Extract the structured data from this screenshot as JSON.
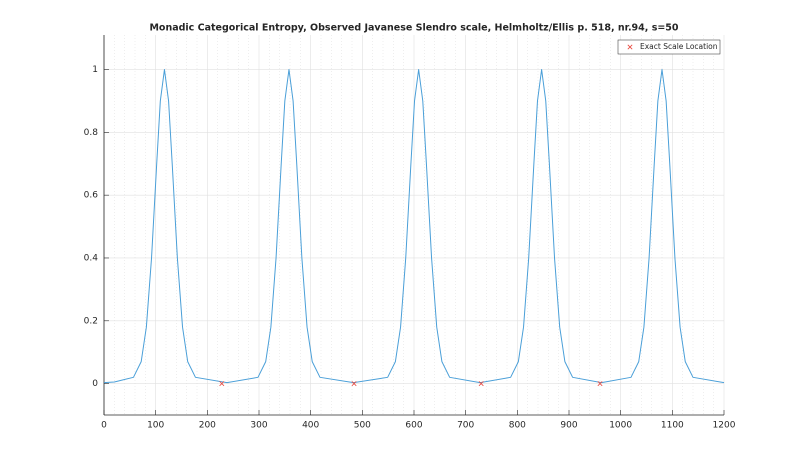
{
  "chart_data": {
    "type": "line",
    "title": "Monadic Categorical Entropy, Observed Javanese Slendro scale, Helmholtz/Ellis p. 518, nr.94, s=50",
    "xlim": [
      0,
      1200
    ],
    "xticks": [
      0,
      100,
      200,
      300,
      400,
      500,
      600,
      700,
      800,
      900,
      1000,
      1100,
      1200
    ],
    "ylim": [
      -0.1,
      1.11
    ],
    "yticks": [
      0,
      0.2,
      0.4,
      0.6,
      0.8,
      1
    ],
    "grid": true,
    "legend": "northeast",
    "series": [
      {
        "type": "line",
        "color": "#4a9fd8",
        "x": [
          0,
          20,
          57,
          72,
          82,
          92,
          102,
          109,
          117,
          125,
          132,
          142,
          152,
          162,
          177,
          238,
          298,
          313,
          323,
          333,
          343,
          350,
          358,
          366,
          373,
          383,
          393,
          403,
          418,
          483,
          549,
          564,
          574,
          584,
          594,
          601,
          609,
          617,
          624,
          634,
          644,
          654,
          669,
          728,
          787,
          802,
          812,
          822,
          832,
          839,
          847,
          855,
          862,
          872,
          882,
          892,
          907,
          963,
          1020,
          1035,
          1045,
          1055,
          1065,
          1072,
          1080,
          1088,
          1095,
          1105,
          1115,
          1125,
          1140,
          1200
        ],
        "values": [
          0.003,
          0.005,
          0.02,
          0.07,
          0.18,
          0.4,
          0.7,
          0.9,
          1,
          0.9,
          0.7,
          0.4,
          0.18,
          0.07,
          0.02,
          0.003,
          0.02,
          0.07,
          0.18,
          0.4,
          0.7,
          0.9,
          1,
          0.9,
          0.7,
          0.4,
          0.18,
          0.07,
          0.02,
          0.003,
          0.02,
          0.07,
          0.18,
          0.4,
          0.7,
          0.9,
          1,
          0.9,
          0.7,
          0.4,
          0.18,
          0.07,
          0.02,
          0.003,
          0.02,
          0.07,
          0.18,
          0.4,
          0.7,
          0.9,
          1,
          0.9,
          0.7,
          0.4,
          0.18,
          0.07,
          0.02,
          0.003,
          0.02,
          0.07,
          0.18,
          0.4,
          0.7,
          0.9,
          1,
          0.9,
          0.7,
          0.4,
          0.18,
          0.07,
          0.02,
          0.003
        ]
      },
      {
        "type": "scatter",
        "name": "Exact Scale Location",
        "color": "#e8463c",
        "marker": "x",
        "x": [
          228,
          484,
          730,
          960
        ],
        "values": [
          0,
          0,
          0,
          0
        ]
      }
    ]
  }
}
